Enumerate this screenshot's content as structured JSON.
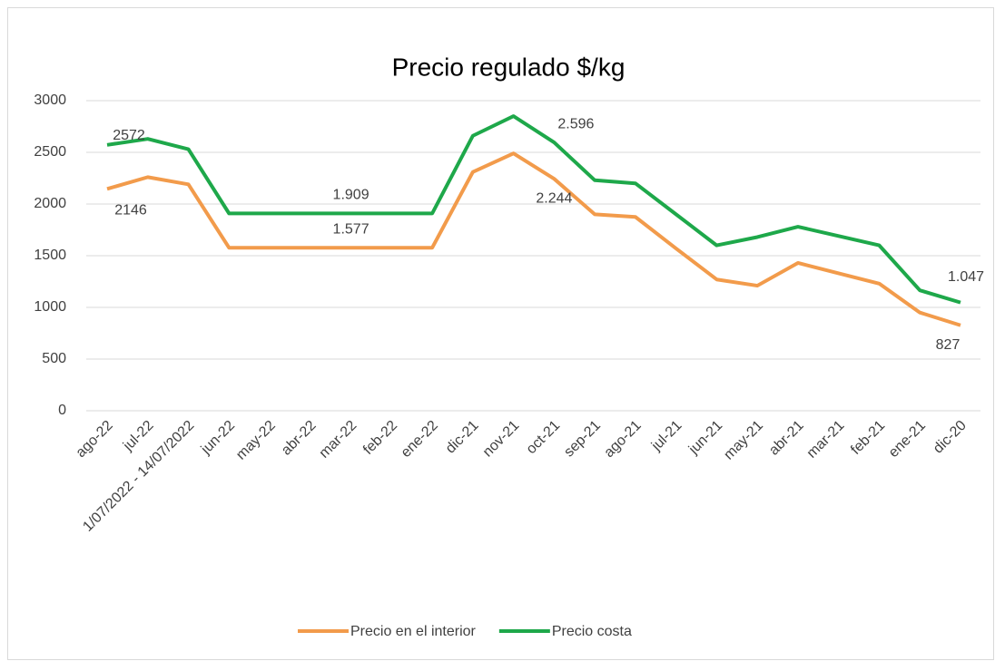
{
  "chart_data": {
    "type": "line",
    "title": "Precio regulado $/kg",
    "categories": [
      "ago-22",
      "jul-22",
      "1/07/2022 - 14/07/2022",
      "jun-22",
      "may-22",
      "abr-22",
      "mar-22",
      "feb-22",
      "ene-22",
      "dic-21",
      "nov-21",
      "oct-21",
      "sep-21",
      "ago-21",
      "jul-21",
      "jun-21",
      "may-21",
      "abr-21",
      "mar-21",
      "feb-21",
      "ene-21",
      "dic-20"
    ],
    "series": [
      {
        "name": "Precio en el interior",
        "color": "#f29b4b",
        "values": [
          2146,
          2260,
          2190,
          1577,
          1577,
          1577,
          1577,
          1577,
          1577,
          2310,
          2490,
          2244,
          1900,
          1875,
          1570,
          1270,
          1210,
          1430,
          1330,
          1230,
          950,
          827
        ],
        "value_labels": [
          "2146",
          null,
          null,
          null,
          null,
          null,
          "1.577",
          null,
          null,
          null,
          null,
          "2.244",
          null,
          null,
          null,
          null,
          null,
          null,
          null,
          null,
          null,
          "827"
        ]
      },
      {
        "name": "Precio costa",
        "color": "#1ea84a",
        "values": [
          2572,
          2630,
          2530,
          1909,
          1909,
          1909,
          1909,
          1909,
          1909,
          2660,
          2850,
          2596,
          2230,
          2200,
          1900,
          1600,
          1680,
          1780,
          1690,
          1600,
          1165,
          1047
        ],
        "value_labels": [
          "2572",
          null,
          null,
          null,
          null,
          null,
          "1.909",
          null,
          null,
          null,
          null,
          "2.596",
          null,
          null,
          null,
          null,
          null,
          null,
          null,
          null,
          null,
          "1.047"
        ]
      }
    ],
    "ylim": [
      0,
      3000
    ],
    "yticks": [
      0,
      500,
      1000,
      1500,
      2000,
      2500,
      3000
    ],
    "grid": true,
    "legend": "bottom"
  }
}
